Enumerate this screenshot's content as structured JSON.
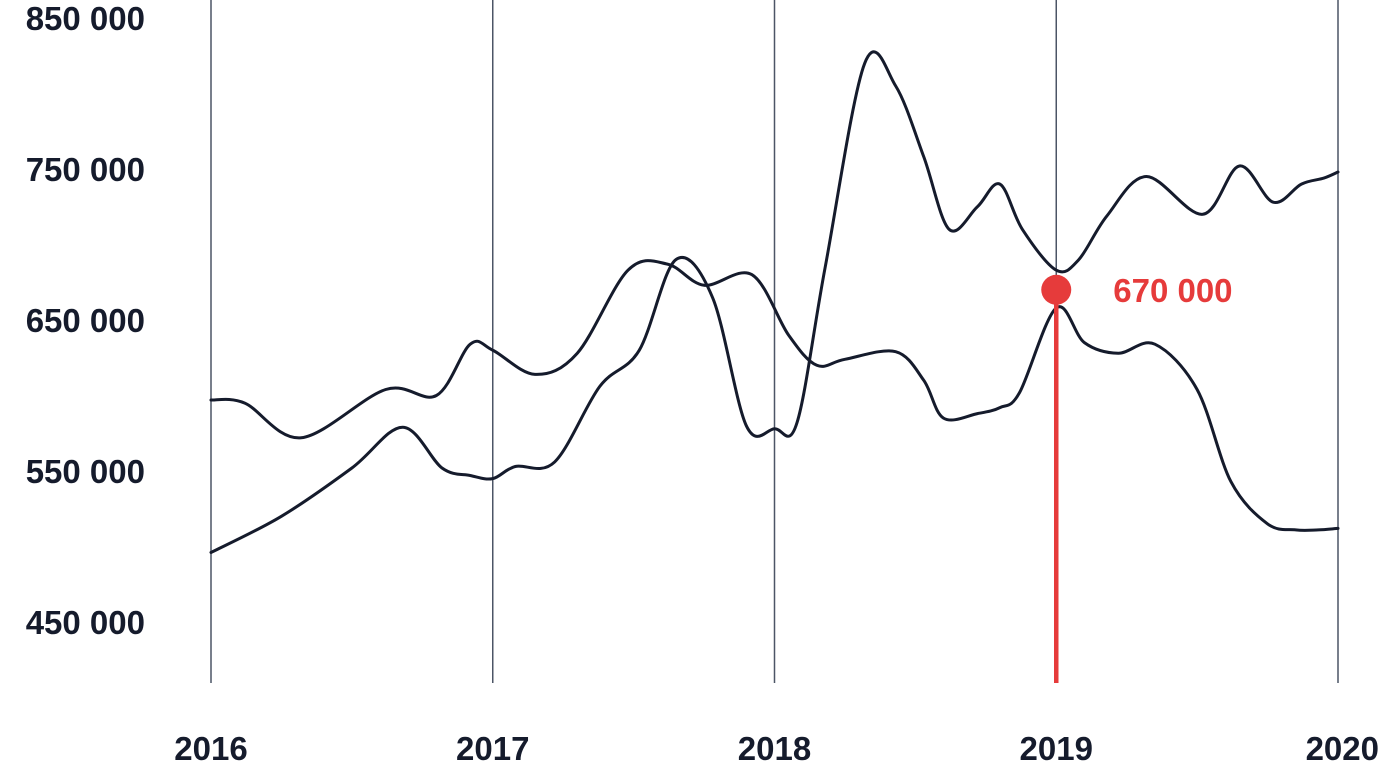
{
  "chart_data": {
    "type": "line",
    "title": "",
    "xlabel": "",
    "ylabel": "",
    "x_ticks": [
      "2016",
      "2017",
      "2018",
      "2019",
      "2020"
    ],
    "y_ticks": [
      "450 000",
      "550 000",
      "650 000",
      "750 000",
      "850 000"
    ],
    "xlim": [
      2016,
      2020
    ],
    "ylim": [
      450000,
      850000
    ],
    "grid": "vertical",
    "series": [
      {
        "x": [
          2016.0,
          2016.12,
          2016.32,
          2016.62,
          2016.8,
          2016.92,
          2017.0,
          2017.15,
          2017.3,
          2017.48,
          2017.62,
          2017.75,
          2017.92,
          2018.05,
          2018.15,
          2018.25,
          2018.43,
          2018.53,
          2018.6,
          2018.72,
          2018.8,
          2018.87,
          2019.0,
          2019.1,
          2019.22,
          2019.35,
          2019.5,
          2019.62,
          2019.75,
          2019.85,
          2019.93,
          2020.0
        ],
        "y": [
          597000,
          595000,
          572000,
          604000,
          600000,
          634000,
          630000,
          614000,
          628000,
          683000,
          687000,
          673000,
          680000,
          640000,
          620000,
          624000,
          629000,
          610000,
          585000,
          588000,
          592000,
          602000,
          658000,
          635000,
          628000,
          634000,
          604000,
          543000,
          515000,
          511000,
          511000,
          512000
        ],
        "color": "#151b2c"
      },
      {
        "x": [
          2016.0,
          2016.25,
          2016.5,
          2016.68,
          2016.82,
          2016.92,
          2017.0,
          2017.08,
          2017.22,
          2017.38,
          2017.52,
          2017.65,
          2017.78,
          2017.9,
          2018.0,
          2018.08,
          2018.18,
          2018.32,
          2018.43,
          2018.53,
          2018.62,
          2018.72,
          2018.8,
          2018.88,
          2019.0,
          2019.08,
          2019.18,
          2019.32,
          2019.52,
          2019.65,
          2019.77,
          2019.87,
          2019.95,
          2020.0
        ],
        "y": [
          496000,
          520000,
          552000,
          579000,
          552000,
          547000,
          545000,
          553000,
          556000,
          606000,
          630000,
          690000,
          665000,
          580000,
          578000,
          582000,
          685000,
          820000,
          805000,
          758000,
          710000,
          725000,
          740000,
          710000,
          683000,
          690000,
          719000,
          745000,
          720000,
          752000,
          728000,
          740000,
          744000,
          748000
        ],
        "color": "#151b2c"
      }
    ],
    "highlight": {
      "x": 2019.0,
      "y": 670000,
      "label": "670 000",
      "color": "#e63b3b"
    }
  }
}
